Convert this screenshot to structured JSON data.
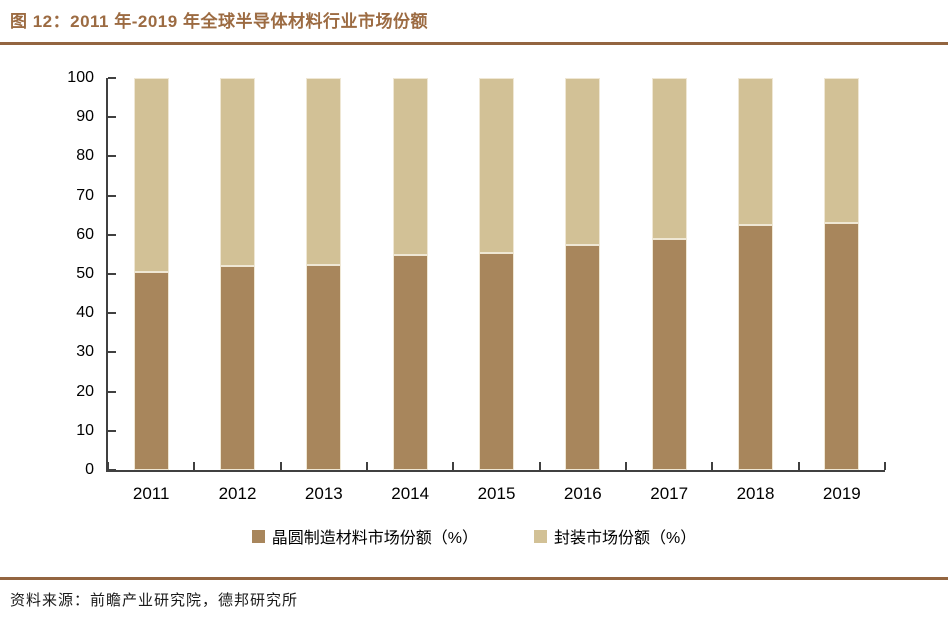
{
  "header": {
    "title": "图 12：2011 年-2019 年全球半导体材料行业市场份额"
  },
  "footer": {
    "source": "资料来源：前瞻产业研究院，德邦研究所"
  },
  "colors": {
    "accent_brown": "#936540",
    "title_text": "#9C6B42",
    "axis": "#404040",
    "bar_wafer": "#A8865C",
    "bar_packaging": "#D2C196",
    "bar_border": "#EFE7D4",
    "label_text": "#000000"
  },
  "chart_data": {
    "type": "bar",
    "stacked": true,
    "title": "2011 年-2019 年全球半导体材料行业市场份额",
    "categories": [
      "2011",
      "2012",
      "2013",
      "2014",
      "2015",
      "2016",
      "2017",
      "2018",
      "2019"
    ],
    "series": [
      {
        "name": "晶圆制造材料市场份额（%）",
        "color": "#A8865C",
        "values": [
          50.4,
          52.0,
          52.3,
          54.8,
          55.3,
          57.4,
          59.0,
          62.4,
          63.0
        ]
      },
      {
        "name": "封装市场份额（%）",
        "color": "#D2C196",
        "values": [
          49.6,
          48.0,
          47.7,
          45.2,
          44.7,
          42.6,
          41.0,
          37.6,
          37.0
        ]
      }
    ],
    "xlabel": "",
    "ylabel": "",
    "ylim": [
      0,
      100
    ],
    "ytick_step": 10,
    "yticks": [
      0,
      10,
      20,
      30,
      40,
      50,
      60,
      70,
      80,
      90,
      100
    ],
    "grid": false,
    "legend_position": "bottom",
    "tick_direction": "in"
  }
}
